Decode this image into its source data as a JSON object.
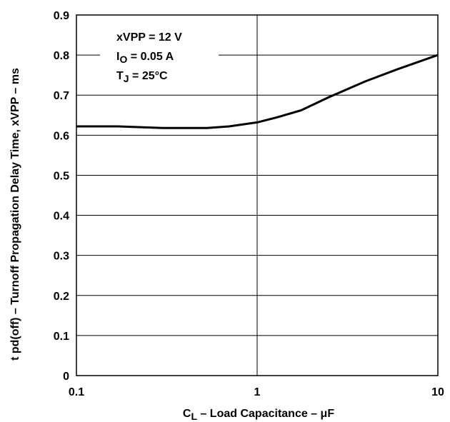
{
  "chart_data": {
    "type": "line",
    "x_scale": "log",
    "xlim": [
      0.1,
      10
    ],
    "ylim": [
      0,
      0.9
    ],
    "grid": true,
    "xlabel": {
      "main": "C",
      "sub": "L",
      "rest": " – Load Capacitance – μF"
    },
    "ylabel": "t pd(off)  – Turnoff Propagation Delay Time, xVPP – ms",
    "x_ticks": [
      {
        "value": 0.1,
        "label": "0.1"
      },
      {
        "value": 1,
        "label": "1"
      },
      {
        "value": 10,
        "label": "10"
      }
    ],
    "y_ticks": [
      {
        "value": 0,
        "label": "0"
      },
      {
        "value": 0.1,
        "label": "0.1"
      },
      {
        "value": 0.2,
        "label": "0.2"
      },
      {
        "value": 0.3,
        "label": "0.3"
      },
      {
        "value": 0.4,
        "label": "0.4"
      },
      {
        "value": 0.5,
        "label": "0.5"
      },
      {
        "value": 0.6,
        "label": "0.6"
      },
      {
        "value": 0.7,
        "label": "0.7"
      },
      {
        "value": 0.8,
        "label": "0.8"
      },
      {
        "value": 0.9,
        "label": "0.9"
      }
    ],
    "annotation": {
      "line1": "xVPP = 12 V",
      "line2_main": "I",
      "line2_sub": "O",
      "line2_rest": " = 0.05 A",
      "line3_main": "T",
      "line3_sub": "J",
      "line3_rest": " = 25°C"
    },
    "series": [
      {
        "x": [
          0.1,
          0.17,
          0.3,
          0.53,
          0.7,
          1.0,
          1.3,
          1.75,
          2.5,
          4.0,
          6.0,
          10.0
        ],
        "y": [
          0.622,
          0.622,
          0.618,
          0.618,
          0.622,
          0.632,
          0.645,
          0.662,
          0.695,
          0.735,
          0.765,
          0.8
        ]
      }
    ]
  }
}
